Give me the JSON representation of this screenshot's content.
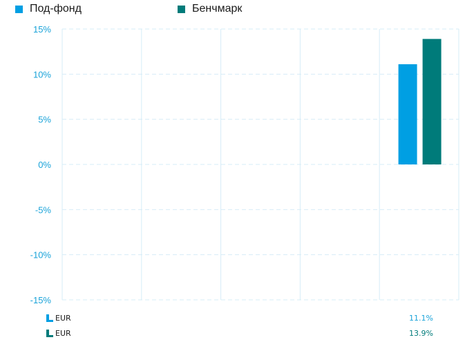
{
  "legend": [
    {
      "label": "Под-фонд",
      "color": "#009fe3"
    },
    {
      "label": "Бенчмарк",
      "color": "#007b7a"
    }
  ],
  "chart_data": {
    "type": "bar",
    "ylim": [
      -15,
      15
    ],
    "yticks": [
      15,
      10,
      5,
      0,
      -5,
      -10,
      -15
    ],
    "ytick_labels": [
      "15%",
      "10%",
      "5%",
      "0%",
      "-5%",
      "-10%",
      "-15%"
    ],
    "num_slots": 5,
    "grid": true,
    "legend_position": "top-left",
    "series": [
      {
        "name": "Под-фонд",
        "color": "#009fe3",
        "values": [
          null,
          null,
          null,
          null,
          11.1
        ]
      },
      {
        "name": "Бенчмарк",
        "color": "#007b7a",
        "values": [
          null,
          null,
          null,
          null,
          13.9
        ]
      }
    ]
  },
  "table": [
    {
      "currency": "EUR",
      "value": "11.1%",
      "icon_color": "#009fe3",
      "value_color": "#1aa3d9"
    },
    {
      "currency": "EUR",
      "value": "13.9%",
      "icon_color": "#007b7a",
      "value_color": "#007b7a"
    }
  ]
}
